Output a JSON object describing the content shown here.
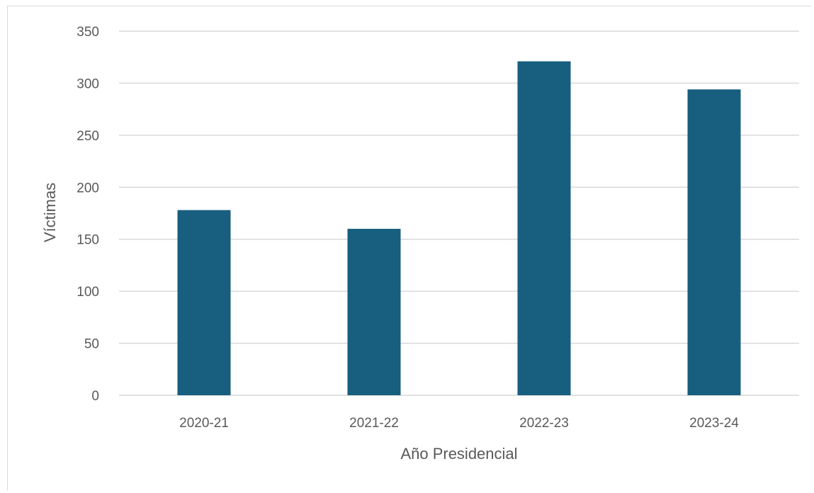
{
  "chart_data": {
    "type": "bar",
    "categories": [
      "2020-21",
      "2021-22",
      "2022-23",
      "2023-24"
    ],
    "values": [
      178,
      160,
      321,
      294
    ],
    "xlabel": "Año Presidencial",
    "ylabel": "Víctimas",
    "ylim": [
      0,
      350
    ],
    "yticks": [
      "0",
      "50",
      "100",
      "150",
      "200",
      "250",
      "300",
      "350"
    ],
    "grid": true,
    "legend": "none",
    "bar_color": "#175e7f",
    "grid_color": "#d9d9d9"
  }
}
